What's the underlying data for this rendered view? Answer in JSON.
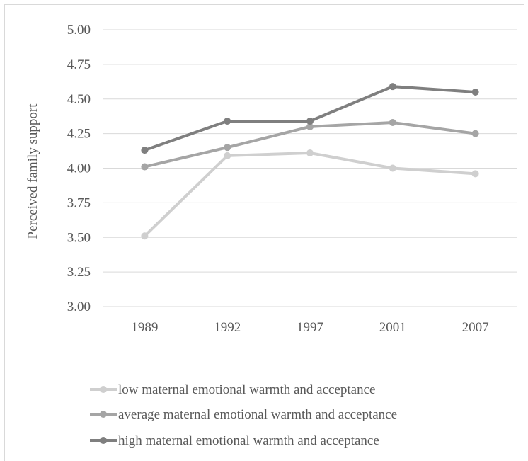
{
  "chart_data": {
    "type": "line",
    "title": "",
    "xlabel": "",
    "ylabel": "Perceived family support",
    "categories": [
      "1989",
      "1992",
      "1997",
      "2001",
      "2007"
    ],
    "ylim": [
      3.0,
      5.0
    ],
    "yticks": [
      "3.00",
      "3.25",
      "3.50",
      "3.75",
      "4.00",
      "4.25",
      "4.50",
      "4.75",
      "5.00"
    ],
    "grid": true,
    "legend_position": "bottom",
    "series": [
      {
        "name": "low maternal emotional warmth and acceptance",
        "values": [
          3.51,
          4.09,
          4.11,
          4.0,
          3.96
        ],
        "color": "#cfcfcf"
      },
      {
        "name": "average maternal emotional warmth and acceptance",
        "values": [
          4.01,
          4.15,
          4.3,
          4.33,
          4.25
        ],
        "color": "#a5a5a5"
      },
      {
        "name": "high maternal emotional warmth and acceptance",
        "values": [
          4.13,
          4.34,
          4.34,
          4.59,
          4.55
        ],
        "color": "#7f7f7f"
      }
    ]
  }
}
